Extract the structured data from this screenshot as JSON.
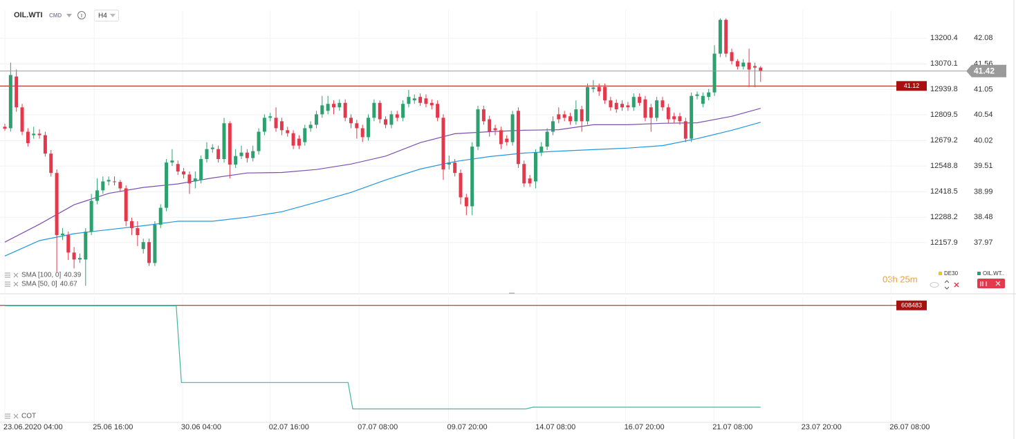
{
  "header": {
    "symbol": "OIL.WTI",
    "badge": "CMD",
    "timeframe": "H4"
  },
  "countdown": "03h 25m",
  "compare": [
    "DE30",
    "OIL.WT.."
  ],
  "chart_data": [
    {
      "type": "candlestick",
      "up_color": "#2e9f6e",
      "down_color": "#e23a4c",
      "grid": true,
      "xlim": [
        -0.84,
        159.8
      ],
      "xticks": [
        {
          "value": 0,
          "label": "23.06.2020 04:00"
        },
        {
          "value": 15.5,
          "label": "25.06 16:00"
        },
        {
          "value": 30.8,
          "label": "30.06 04:00"
        },
        {
          "value": 46.0,
          "label": "02.07 16:00"
        },
        {
          "value": 61.4,
          "label": "07.07 08:00"
        },
        {
          "value": 76.9,
          "label": "09.07 20:00"
        },
        {
          "value": 92.2,
          "label": "14.07 08:00"
        },
        {
          "value": 107.6,
          "label": "16.07 20:00"
        },
        {
          "value": 122.9,
          "label": "21.07 08:00"
        },
        {
          "value": 138.3,
          "label": "23.07 20:00"
        },
        {
          "value": 153.6,
          "label": "26.07 08:00"
        }
      ],
      "ylim": [
        36.94,
        42.64
      ],
      "yticks": [
        37.97,
        38.48,
        38.99,
        39.51,
        40.02,
        40.54,
        41.05,
        41.56,
        42.08
      ],
      "y2lim": [
        11897.4,
        13341.3
      ],
      "y2ticks": [
        12157.9,
        12288.2,
        12418.5,
        12548.8,
        12679.2,
        12809.5,
        12939.8,
        13070.1,
        13200.4
      ],
      "open": [
        40.3,
        40.27,
        41.31,
        40.69,
        40.2,
        40.13,
        40.16,
        40.13,
        39.76,
        39.37,
        38.12,
        38.12,
        37.77,
        37.63,
        37.63,
        38.19,
        38.81,
        39.02,
        39.2,
        39.2,
        39.19,
        39.06,
        38.4,
        38.26,
        37.84,
        37.98,
        37.56,
        38.33,
        38.67,
        39.58,
        39.55,
        39.4,
        39.34,
        39.2,
        39.23,
        39.65,
        39.85,
        39.85,
        39.65,
        40.37,
        39.54,
        39.71,
        39.78,
        39.67,
        39.81,
        40.2,
        40.48,
        40.48,
        40.41,
        40.23,
        40.17,
        40.06,
        39.99,
        40.27,
        40.34,
        40.55,
        40.62,
        40.76,
        40.69,
        40.78,
        40.48,
        40.37,
        40.27,
        40.09,
        40.48,
        40.78,
        40.45,
        40.34,
        40.55,
        40.48,
        40.76,
        40.83,
        40.9,
        40.87,
        40.78,
        40.76,
        40.48,
        39.54,
        39.58,
        39.37,
        38.88,
        38.7,
        39.9,
        40.65,
        40.45,
        40.27,
        40.23,
        40.06,
        39.99,
        40.62,
        39.55,
        39.26,
        39.2,
        39.78,
        39.9,
        40.2,
        40.55,
        40.55,
        40.51,
        40.41,
        40.65,
        40.41,
        41.06,
        41.1,
        41.1,
        40.83,
        40.78,
        40.76,
        40.73,
        40.69,
        40.9,
        40.85,
        40.69,
        40.48,
        40.83,
        40.69,
        40.51,
        40.51,
        40.41,
        40.06,
        40.92,
        40.76,
        40.9,
        40.99,
        41.77,
        42.45,
        41.8,
        41.62,
        41.51,
        41.59,
        41.52,
        41.49
      ],
      "high": [
        40.36,
        41.59,
        41.45,
        40.76,
        40.27,
        40.3,
        40.25,
        40.2,
        39.83,
        39.44,
        38.26,
        38.19,
        37.88,
        37.75,
        38.26,
        38.95,
        39.26,
        39.3,
        39.3,
        39.3,
        39.23,
        39.12,
        38.47,
        38.4,
        38.05,
        38.05,
        38.4,
        38.74,
        39.65,
        39.85,
        39.62,
        39.47,
        39.4,
        39.4,
        39.72,
        39.99,
        39.95,
        39.92,
        40.48,
        40.41,
        39.85,
        39.92,
        39.85,
        39.92,
        40.27,
        40.55,
        40.58,
        40.69,
        40.48,
        40.3,
        40.23,
        40.13,
        40.34,
        40.41,
        40.62,
        40.92,
        40.92,
        40.83,
        40.85,
        40.85,
        40.55,
        40.44,
        40.34,
        40.55,
        40.85,
        40.83,
        40.51,
        40.62,
        40.62,
        40.83,
        41.04,
        40.95,
        40.97,
        40.95,
        40.85,
        40.83,
        40.55,
        39.72,
        39.65,
        39.44,
        38.95,
        39.99,
        40.72,
        40.72,
        40.52,
        40.34,
        40.3,
        40.13,
        40.62,
        40.69,
        39.62,
        39.33,
        39.85,
        39.99,
        40.27,
        40.51,
        40.69,
        40.62,
        40.58,
        40.83,
        40.72,
        41.17,
        41.24,
        41.17,
        41.17,
        40.9,
        40.85,
        40.83,
        40.8,
        40.97,
        40.97,
        40.92,
        40.76,
        40.9,
        40.9,
        40.76,
        40.58,
        40.58,
        40.48,
        40.99,
        41.01,
        40.99,
        41.06,
        41.94,
        42.48,
        42.48,
        41.87,
        41.66,
        41.66,
        41.87,
        41.59,
        41.52
      ],
      "low": [
        40.22,
        40.2,
        40.6,
        40.13,
        39.9,
        40.06,
        40.06,
        39.7,
        39.3,
        37.38,
        38.02,
        37.62,
        37.45,
        37.56,
        37.1,
        38.12,
        38.74,
        38.95,
        39.12,
        39.12,
        38.99,
        38.3,
        38.12,
        37.9,
        37.75,
        37.5,
        37.5,
        38.26,
        38.6,
        39.51,
        39.33,
        39.26,
        38.95,
        39.06,
        39.16,
        39.58,
        39.78,
        39.58,
        39.58,
        39.26,
        39.47,
        39.65,
        39.58,
        39.6,
        39.74,
        40.13,
        40.41,
        40.2,
        40.13,
        40.1,
        39.85,
        39.85,
        39.92,
        40.2,
        40.27,
        40.48,
        40.55,
        40.55,
        40.62,
        40.41,
        40.27,
        40.06,
        39.99,
        40.02,
        40.41,
        40.37,
        40.27,
        40.27,
        40.41,
        40.41,
        40.69,
        40.76,
        40.72,
        40.69,
        40.65,
        40.41,
        39.23,
        39.44,
        39.3,
        38.74,
        38.52,
        38.52,
        39.83,
        40.34,
        40.1,
        40.13,
        39.85,
        39.92,
        39.92,
        39.47,
        39.09,
        39.09,
        39.06,
        39.71,
        39.83,
        40.13,
        40.37,
        40.41,
        40.34,
        40.34,
        40.2,
        40.34,
        40.99,
        40.92,
        40.76,
        40.62,
        40.58,
        40.62,
        40.62,
        40.62,
        40.72,
        40.41,
        40.2,
        40.41,
        40.62,
        40.37,
        40.37,
        40.34,
        39.99,
        39.99,
        40.85,
        40.69,
        40.83,
        40.92,
        41.7,
        41.7,
        41.55,
        41.45,
        41.45,
        41.1,
        41.1,
        41.2
      ],
      "close": [
        40.26,
        41.34,
        40.69,
        40.2,
        39.97,
        40.16,
        40.13,
        39.76,
        39.37,
        38.12,
        38.15,
        37.77,
        37.63,
        37.66,
        38.19,
        38.81,
        39.02,
        39.2,
        39.23,
        39.19,
        39.06,
        38.4,
        38.26,
        38.12,
        37.98,
        37.56,
        38.33,
        38.67,
        39.58,
        39.62,
        39.4,
        39.34,
        39.16,
        39.26,
        39.65,
        39.85,
        39.88,
        39.65,
        40.37,
        39.54,
        39.71,
        39.78,
        39.67,
        39.81,
        40.2,
        40.48,
        40.51,
        40.27,
        40.23,
        40.17,
        39.92,
        39.92,
        40.27,
        40.34,
        40.55,
        40.73,
        40.76,
        40.69,
        40.78,
        40.48,
        40.37,
        40.27,
        40.09,
        40.48,
        40.78,
        40.45,
        40.34,
        40.55,
        40.48,
        40.76,
        40.9,
        40.87,
        40.78,
        40.76,
        40.73,
        40.48,
        39.44,
        39.58,
        39.37,
        38.88,
        38.7,
        39.9,
        40.65,
        40.41,
        40.2,
        40.23,
        39.95,
        39.99,
        40.55,
        39.55,
        39.16,
        39.16,
        39.78,
        39.9,
        40.2,
        40.41,
        40.45,
        40.48,
        40.41,
        40.65,
        40.41,
        41.1,
        41.09,
        41.01,
        40.83,
        40.69,
        40.65,
        40.69,
        40.69,
        40.9,
        40.78,
        40.48,
        40.48,
        40.83,
        40.69,
        40.45,
        40.45,
        40.41,
        40.06,
        40.92,
        40.95,
        40.92,
        40.99,
        41.77,
        42.45,
        41.77,
        41.62,
        41.51,
        41.59,
        41.45,
        41.49,
        41.42
      ],
      "current_color": "#9a9a9a",
      "series": [
        {
          "name": "SMA [100, 0]",
          "color": "#2196e0",
          "x": [
            0,
            6,
            12,
            18,
            24,
            30,
            36,
            42,
            48,
            54,
            60,
            66,
            72,
            78,
            84,
            90,
            96,
            102,
            108,
            114,
            120,
            126,
            131
          ],
          "values": [
            37.7,
            38.01,
            38.15,
            38.23,
            38.31,
            38.4,
            38.4,
            38.48,
            38.59,
            38.78,
            38.98,
            39.23,
            39.45,
            39.6,
            39.7,
            39.77,
            39.81,
            39.84,
            39.87,
            39.92,
            40.06,
            40.23,
            40.39
          ]
        },
        {
          "name": "SMA [50, 0]",
          "color": "#7b4fb0",
          "x": [
            0,
            6,
            12,
            18,
            24,
            30,
            36,
            42,
            48,
            54,
            60,
            66,
            72,
            78,
            84,
            90,
            96,
            102,
            108,
            114,
            120,
            126,
            131
          ],
          "values": [
            37.98,
            38.34,
            38.73,
            38.96,
            39.08,
            39.15,
            39.27,
            39.37,
            39.38,
            39.44,
            39.55,
            39.71,
            39.98,
            40.16,
            40.2,
            40.23,
            40.24,
            40.34,
            40.34,
            40.37,
            40.38,
            40.51,
            40.67
          ]
        }
      ],
      "price_lines": [
        {
          "value": 41.12,
          "color": "#a80f0f"
        }
      ]
    },
    {
      "type": "line",
      "xlim": [
        -0.84,
        159.8
      ],
      "ylim": [
        472000,
        618000
      ],
      "series": [
        {
          "name": "COT",
          "color": "#3cb89c",
          "x": [
            0,
            29.7,
            30.6,
            59.5,
            60.3,
            90.3,
            91.5,
            131
          ],
          "values": [
            608000,
            608000,
            518000,
            518000,
            487000,
            487000,
            489000,
            489000
          ]
        }
      ],
      "price_lines": [
        {
          "value": 608483,
          "color": "#a80f0f"
        }
      ]
    }
  ]
}
